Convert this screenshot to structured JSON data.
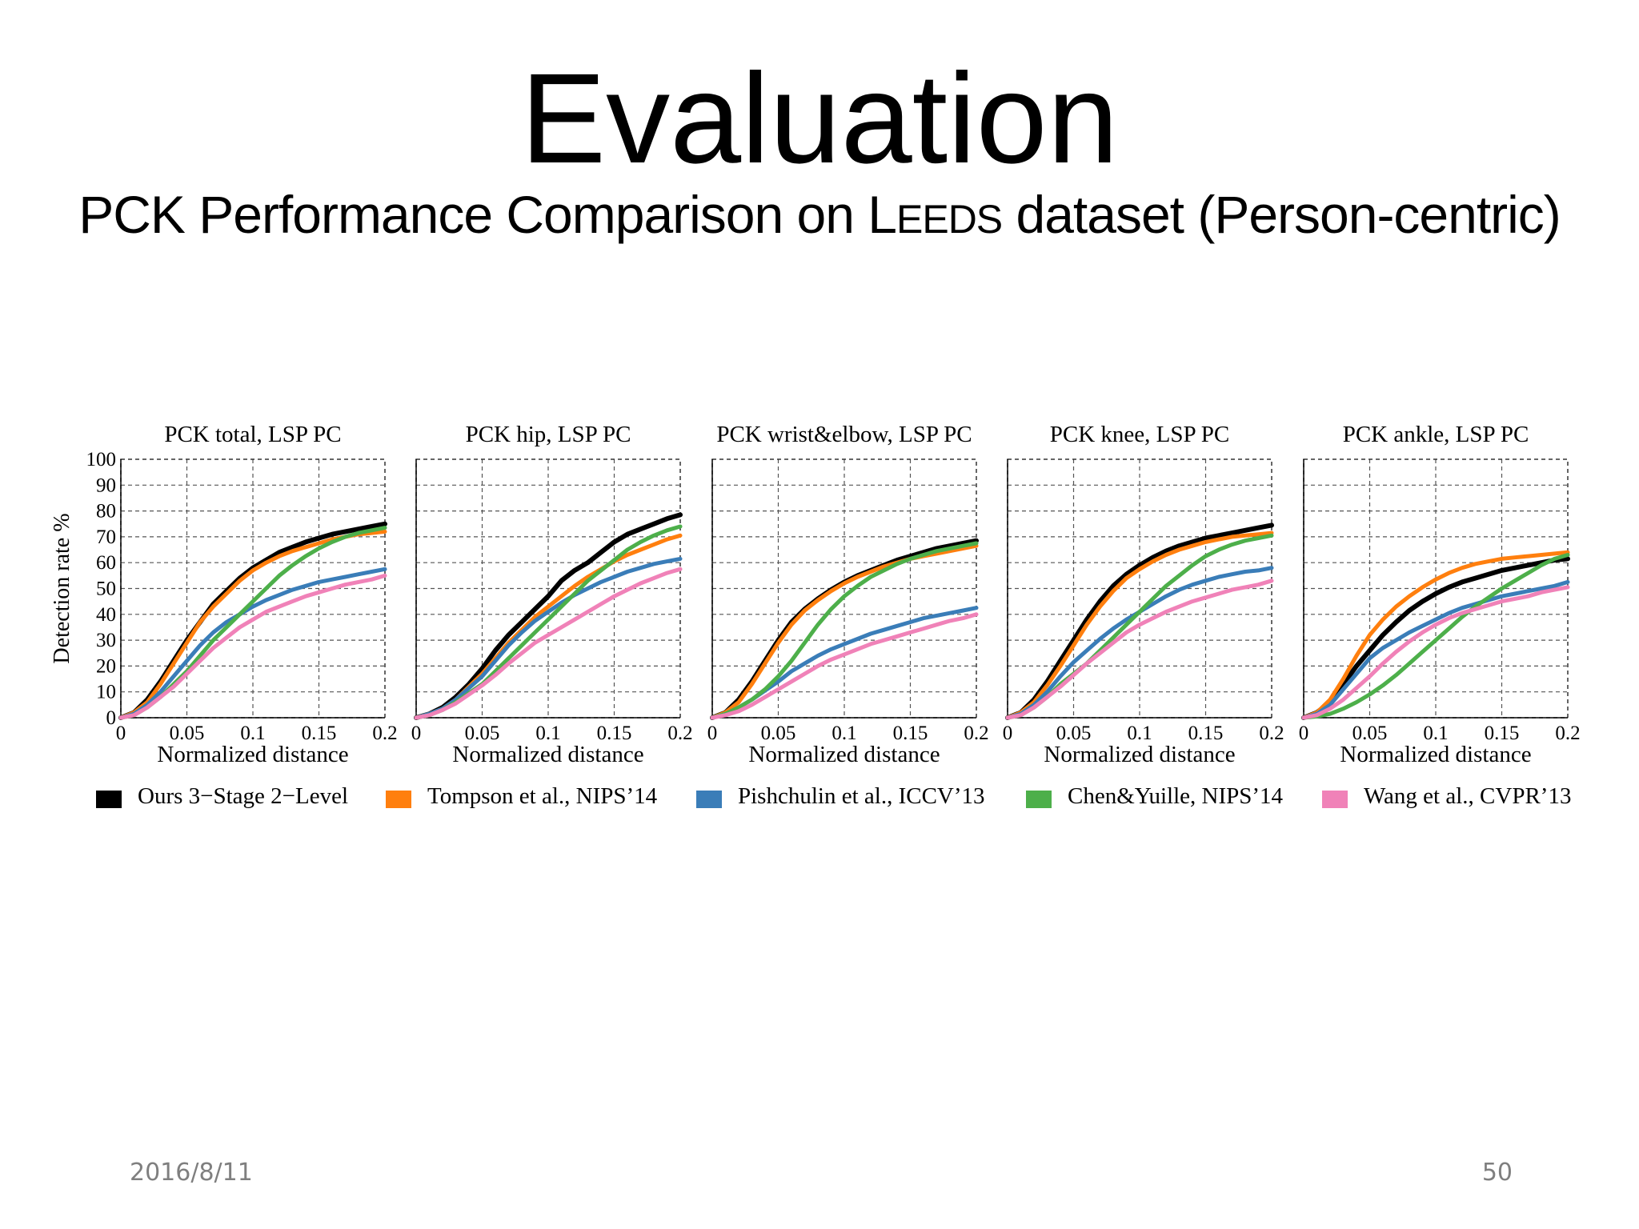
{
  "slide": {
    "title": "Evaluation",
    "subtitle_pre": "PCK Performance Comparison on L",
    "subtitle_sc": "EEDS",
    "subtitle_post": " dataset (Person-centric)",
    "date": "2016/8/11",
    "page_number": "50"
  },
  "legend": [
    {
      "name": "Ours 3−Stage 2−Level",
      "color": "#000000"
    },
    {
      "name": "Tompson et al., NIPS’14",
      "color": "#ff7f0e"
    },
    {
      "name": "Pishchulin et al., ICCV’13",
      "color": "#3a7db8"
    },
    {
      "name": "Chen&Yuille, NIPS’14",
      "color": "#4daf4a"
    },
    {
      "name": "Wang et al., CVPR’13",
      "color": "#f082b8"
    }
  ],
  "chart_data": [
    {
      "type": "line",
      "title": "PCK total, LSP PC",
      "xlabel": "Normalized distance",
      "ylabel": "Detection rate %",
      "xlim": [
        0,
        0.2
      ],
      "ylim": [
        0,
        100
      ],
      "xticks": [
        "0",
        "0.05",
        "0.1",
        "0.15",
        "0.2"
      ],
      "yticks": [
        "0",
        "10",
        "20",
        "30",
        "40",
        "50",
        "60",
        "70",
        "80",
        "90",
        "100"
      ],
      "grid": true,
      "x": [
        0,
        0.01,
        0.02,
        0.03,
        0.04,
        0.05,
        0.06,
        0.07,
        0.08,
        0.09,
        0.1,
        0.11,
        0.12,
        0.13,
        0.14,
        0.15,
        0.16,
        0.17,
        0.18,
        0.19,
        0.2
      ],
      "series": [
        {
          "name": "Ours 3−Stage 2−Level",
          "values": [
            0,
            2,
            7,
            14,
            22,
            30,
            37,
            44,
            49,
            54,
            58,
            61,
            64,
            66,
            68,
            69.5,
            71,
            72,
            73,
            74,
            75
          ]
        },
        {
          "name": "Tompson et al., NIPS’14",
          "values": [
            0,
            2,
            6,
            13,
            21,
            29,
            37,
            43,
            48,
            53,
            57,
            60,
            62.5,
            64.5,
            66,
            67.5,
            69,
            70,
            71,
            71.5,
            72
          ]
        },
        {
          "name": "Pishchulin et al., ICCV’13",
          "values": [
            0,
            1.5,
            5,
            10,
            16,
            22,
            28,
            33,
            37,
            40,
            43,
            45.5,
            47.5,
            49.5,
            51,
            52.5,
            53.5,
            54.5,
            55.5,
            56.5,
            57.5
          ]
        },
        {
          "name": "Chen&Yuille, NIPS’14",
          "values": [
            0,
            1,
            4,
            8,
            13,
            18,
            24,
            30,
            35,
            40,
            45,
            50,
            55,
            59,
            62.5,
            65.5,
            68,
            70,
            71.5,
            72.5,
            73.5
          ]
        },
        {
          "name": "Wang et al., CVPR’13",
          "values": [
            0,
            1,
            4,
            8,
            12,
            17,
            22,
            27,
            31,
            35,
            38,
            41,
            43,
            45,
            47,
            48.5,
            50,
            51.5,
            52.5,
            53.5,
            55
          ]
        }
      ]
    },
    {
      "type": "line",
      "title": "PCK hip, LSP PC",
      "xlabel": "Normalized distance",
      "xlim": [
        0,
        0.2
      ],
      "ylim": [
        0,
        100
      ],
      "xticks": [
        "0",
        "0.05",
        "0.1",
        "0.15",
        "0.2"
      ],
      "grid": true,
      "x": [
        0,
        0.01,
        0.02,
        0.03,
        0.04,
        0.05,
        0.06,
        0.07,
        0.08,
        0.09,
        0.1,
        0.11,
        0.12,
        0.13,
        0.14,
        0.15,
        0.16,
        0.17,
        0.18,
        0.19,
        0.2
      ],
      "series": [
        {
          "name": "Ours 3−Stage 2−Level",
          "values": [
            0,
            1.5,
            4,
            8,
            13,
            19,
            26,
            32,
            37,
            42,
            47,
            53,
            57,
            60,
            64,
            68,
            71,
            73,
            75,
            77,
            78.5
          ]
        },
        {
          "name": "Tompson et al., NIPS’14",
          "values": [
            0,
            1.5,
            3.5,
            7,
            12,
            17,
            23,
            29,
            34,
            39,
            43,
            47,
            51,
            54.5,
            57.5,
            60.5,
            63,
            65,
            67,
            69,
            70.5
          ]
        },
        {
          "name": "Pishchulin et al., ICCV’13",
          "values": [
            0,
            1.5,
            3.5,
            7,
            11.5,
            16,
            22,
            28,
            33,
            37.5,
            41,
            44.5,
            47.5,
            50,
            52.5,
            54.5,
            56.5,
            58,
            59.5,
            60.5,
            61.5
          ]
        },
        {
          "name": "Chen&Yuille, NIPS’14",
          "values": [
            0,
            1,
            3,
            6,
            9.5,
            13,
            18,
            23,
            28,
            33,
            38,
            43,
            48,
            53,
            57,
            61,
            65,
            68,
            70.5,
            72.5,
            74
          ]
        },
        {
          "name": "Wang et al., CVPR’13",
          "values": [
            0,
            1,
            3,
            5.5,
            9,
            12.5,
            16.5,
            21,
            25,
            29,
            32,
            35,
            38,
            41,
            44,
            47,
            49.5,
            52,
            54,
            56,
            57.5
          ]
        }
      ]
    },
    {
      "type": "line",
      "title": "PCK wrist&elbow, LSP PC",
      "xlabel": "Normalized distance",
      "xlim": [
        0,
        0.2
      ],
      "ylim": [
        0,
        100
      ],
      "xticks": [
        "0",
        "0.05",
        "0.1",
        "0.15",
        "0.2"
      ],
      "grid": true,
      "x": [
        0,
        0.01,
        0.02,
        0.03,
        0.04,
        0.05,
        0.06,
        0.07,
        0.08,
        0.09,
        0.1,
        0.11,
        0.12,
        0.13,
        0.14,
        0.15,
        0.16,
        0.17,
        0.18,
        0.19,
        0.2
      ],
      "series": [
        {
          "name": "Ours 3−Stage 2−Level",
          "values": [
            0,
            2,
            7,
            14,
            22,
            30,
            37,
            42,
            46,
            49.5,
            52.5,
            55,
            57,
            59,
            61,
            62.5,
            64,
            65.5,
            66.5,
            67.5,
            68.5
          ]
        },
        {
          "name": "Tompson et al., NIPS’14",
          "values": [
            0,
            2,
            6,
            13,
            21,
            29,
            36,
            41.5,
            45.5,
            49,
            52,
            54.5,
            56.5,
            58.5,
            60,
            61.5,
            62.5,
            63.5,
            64.5,
            65.5,
            66.5
          ]
        },
        {
          "name": "Pishchulin et al., ICCV’13",
          "values": [
            0,
            1.5,
            4,
            7,
            10.5,
            14,
            18,
            21,
            24,
            26.5,
            28.5,
            30.5,
            32.5,
            34,
            35.5,
            37,
            38.5,
            39.5,
            40.5,
            41.5,
            42.5
          ]
        },
        {
          "name": "Chen&Yuille, NIPS’14",
          "values": [
            0,
            1.5,
            4,
            7,
            11,
            16,
            22,
            29,
            36,
            42,
            47,
            51,
            54.5,
            57,
            59.5,
            61.5,
            63,
            64.5,
            65.5,
            66.5,
            67.5
          ]
        },
        {
          "name": "Wang et al., CVPR’13",
          "values": [
            0,
            1,
            2.5,
            5,
            8,
            11,
            14,
            17,
            20,
            22.5,
            24.5,
            26.5,
            28.5,
            30,
            31.5,
            33,
            34.5,
            36,
            37.5,
            38.5,
            40
          ]
        }
      ]
    },
    {
      "type": "line",
      "title": "PCK knee, LSP PC",
      "xlabel": "Normalized distance",
      "xlim": [
        0,
        0.2
      ],
      "ylim": [
        0,
        100
      ],
      "xticks": [
        "0",
        "0.05",
        "0.1",
        "0.15",
        "0.2"
      ],
      "grid": true,
      "x": [
        0,
        0.01,
        0.02,
        0.03,
        0.04,
        0.05,
        0.06,
        0.07,
        0.08,
        0.09,
        0.1,
        0.11,
        0.12,
        0.13,
        0.14,
        0.15,
        0.16,
        0.17,
        0.18,
        0.19,
        0.2
      ],
      "series": [
        {
          "name": "Ours 3−Stage 2−Level",
          "values": [
            0,
            2,
            7,
            14,
            22,
            30,
            38,
            45,
            51,
            55.5,
            59,
            62,
            64.5,
            66.5,
            68,
            69.5,
            70.5,
            71.5,
            72.5,
            73.5,
            74.5
          ]
        },
        {
          "name": "Tompson et al., NIPS’14",
          "values": [
            0,
            2,
            6,
            12.5,
            20,
            28,
            36,
            43,
            49,
            54,
            57.5,
            60.5,
            63,
            65,
            66.5,
            68,
            69,
            70,
            70.5,
            71,
            71.5
          ]
        },
        {
          "name": "Pishchulin et al., ICCV’13",
          "values": [
            0,
            1.5,
            5,
            10,
            16,
            21.5,
            26,
            30.5,
            34.5,
            38,
            41,
            44,
            47,
            49.5,
            51.5,
            53,
            54.5,
            55.5,
            56.5,
            57,
            58
          ]
        },
        {
          "name": "Chen&Yuille, NIPS’14",
          "values": [
            0,
            1,
            4,
            8,
            13,
            17,
            21,
            26,
            31,
            36,
            41,
            46,
            51,
            55,
            59,
            62.5,
            65,
            67,
            68.5,
            69.5,
            70.5
          ]
        },
        {
          "name": "Wang et al., CVPR’13",
          "values": [
            0,
            1,
            4,
            8,
            12,
            16.5,
            21,
            25,
            29,
            33,
            36,
            38.5,
            41,
            43,
            45,
            46.5,
            48,
            49.5,
            50.5,
            51.5,
            53
          ]
        }
      ]
    },
    {
      "type": "line",
      "title": "PCK ankle, LSP PC",
      "xlabel": "Normalized distance",
      "xlim": [
        0,
        0.2
      ],
      "ylim": [
        0,
        100
      ],
      "xticks": [
        "0",
        "0.05",
        "0.1",
        "0.15",
        "0.2"
      ],
      "grid": true,
      "x": [
        0,
        0.01,
        0.02,
        0.03,
        0.04,
        0.05,
        0.06,
        0.07,
        0.08,
        0.09,
        0.1,
        0.11,
        0.12,
        0.13,
        0.14,
        0.15,
        0.16,
        0.17,
        0.18,
        0.19,
        0.2
      ],
      "series": [
        {
          "name": "Ours 3−Stage 2−Level",
          "values": [
            0,
            2,
            6,
            13,
            20,
            26,
            32,
            37,
            41.5,
            45,
            48,
            50.5,
            52.5,
            54,
            55.5,
            57,
            58,
            59,
            60,
            61,
            61.5
          ]
        },
        {
          "name": "Tompson et al., NIPS’14",
          "values": [
            0,
            2,
            7,
            15,
            24,
            32,
            38,
            43,
            47,
            50.5,
            53.5,
            56,
            58,
            59.5,
            60.5,
            61.5,
            62,
            62.5,
            63,
            63.5,
            64
          ]
        },
        {
          "name": "Pishchulin et al., ICCV’13",
          "values": [
            0,
            1.5,
            5,
            11,
            17,
            23,
            27,
            30,
            33,
            35.5,
            38,
            40.5,
            42.5,
            44,
            45.5,
            47,
            48,
            49,
            50,
            51,
            52.5
          ]
        },
        {
          "name": "Chen&Yuille, NIPS’14",
          "values": [
            0,
            0.5,
            1.5,
            3.5,
            6,
            9,
            12.5,
            16.5,
            21,
            25.5,
            30,
            34.5,
            39,
            43,
            46.5,
            50,
            53,
            56,
            59,
            61.5,
            63
          ]
        },
        {
          "name": "Wang et al., CVPR’13",
          "values": [
            0,
            1,
            3.5,
            7,
            11.5,
            16,
            21,
            25.5,
            29.5,
            33,
            36,
            38.5,
            40.5,
            42,
            43.5,
            45,
            46,
            47,
            48.5,
            49.5,
            50.5
          ]
        }
      ]
    }
  ]
}
